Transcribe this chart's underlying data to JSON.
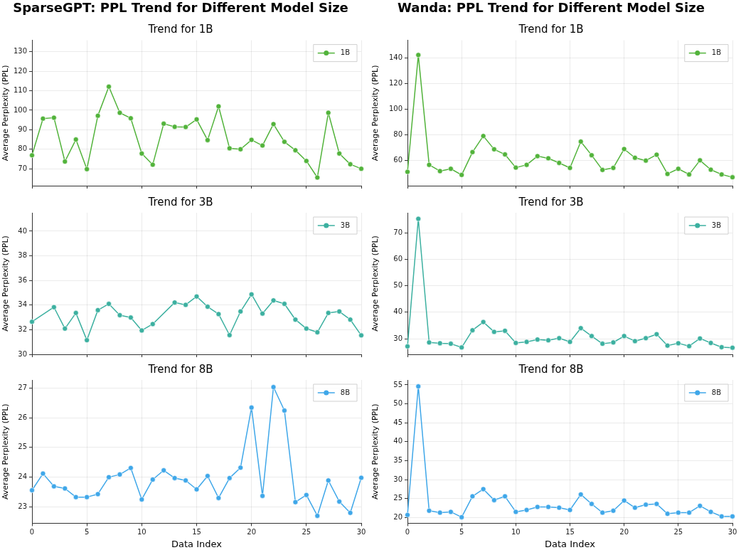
{
  "chart_data": [
    {
      "type": "line",
      "title": "SparseGPT: PPL Trend for Different Model Size",
      "subtitle": "Trend for 1B",
      "ylabel": "Average Perplexity (PPL)",
      "x": [
        0,
        1,
        2,
        3,
        4,
        5,
        6,
        7,
        8,
        9,
        10,
        11,
        12,
        13,
        14,
        15,
        16,
        17,
        18,
        19,
        20,
        21,
        22,
        23,
        24,
        25,
        26,
        27,
        28,
        29,
        30
      ],
      "series": [
        {
          "name": "1B",
          "color": "#52b33b",
          "values": [
            76.9,
            95.7,
            96.2,
            73.7,
            85.0,
            69.8,
            97.2,
            112.1,
            98.7,
            95.9,
            77.8,
            72.1,
            93.1,
            91.5,
            91.4,
            95.3,
            84.7,
            102.0,
            80.5,
            80.0,
            84.8,
            81.9,
            92.9,
            83.8,
            79.5,
            74.0,
            65.5,
            98.7,
            77.8,
            72.3,
            70.0
          ]
        }
      ],
      "xlim": [
        0,
        30
      ],
      "xticks": [
        0,
        5,
        10,
        15,
        20,
        25,
        30
      ],
      "ylim": [
        61.3,
        135.9
      ],
      "yticks": [
        70,
        80,
        90,
        100,
        110,
        120,
        130
      ],
      "tick_labels": "y",
      "grid": true,
      "legend": "top right",
      "marker": "circle"
    },
    {
      "type": "line",
      "title": "Trend for 3B",
      "ylabel": "Average Perplexity (PPL)",
      "x": [
        0,
        1,
        2,
        3,
        4,
        5,
        6,
        7,
        8,
        9,
        10,
        11,
        12,
        13,
        14,
        15,
        16,
        17,
        18,
        19,
        20,
        21,
        22,
        23,
        24,
        25,
        26,
        27,
        28,
        29,
        30
      ],
      "series": [
        {
          "name": "3B",
          "color": "#3cb0a0",
          "values": [
            32.65,
            null,
            33.83,
            32.09,
            33.36,
            31.15,
            33.59,
            34.1,
            33.18,
            32.99,
            31.94,
            32.46,
            null,
            34.21,
            34.02,
            34.7,
            33.87,
            33.27,
            31.56,
            33.48,
            34.87,
            33.31,
            34.38,
            34.1,
            32.82,
            32.09,
            31.79,
            33.36,
            33.48,
            32.82,
            31.54
          ]
        }
      ],
      "xlim": [
        0,
        30
      ],
      "xticks": [
        0,
        5,
        10,
        15,
        20,
        25,
        30
      ],
      "ylim": [
        30,
        41.5
      ],
      "yticks": [
        30,
        32,
        34,
        36,
        38,
        40
      ],
      "tick_labels": "y",
      "grid": true,
      "legend": "top right",
      "marker": "circle"
    },
    {
      "type": "line",
      "title": "Trend for 8B",
      "xlabel": "Data Index",
      "ylabel": "Average Perplexity (PPL)",
      "x": [
        0,
        1,
        2,
        3,
        4,
        5,
        6,
        7,
        8,
        9,
        10,
        11,
        12,
        13,
        14,
        15,
        16,
        17,
        18,
        19,
        20,
        21,
        22,
        23,
        24,
        25,
        26,
        27,
        28,
        29,
        30
      ],
      "series": [
        {
          "name": "8B",
          "color": "#3fa7e9",
          "values": [
            23.56,
            24.12,
            23.69,
            23.62,
            23.33,
            23.33,
            23.43,
            24.0,
            24.09,
            24.31,
            23.25,
            23.92,
            24.23,
            23.97,
            23.89,
            23.59,
            24.04,
            23.3,
            23.97,
            24.32,
            26.34,
            23.37,
            27.03,
            26.24,
            23.16,
            23.4,
            22.7,
            23.89,
            23.18,
            22.8,
            23.98
          ]
        }
      ],
      "xlim": [
        0,
        30
      ],
      "xticks": [
        0,
        5,
        10,
        15,
        20,
        25,
        30
      ],
      "ylim": [
        22.45,
        27.27
      ],
      "yticks": [
        23,
        24,
        25,
        26,
        27
      ],
      "grid": true,
      "legend": "top right",
      "marker": "circle"
    },
    {
      "type": "line",
      "title": "Wanda: PPL Trend for Different Model Size",
      "subtitle": "Trend for 1B",
      "ylabel": "Average Perplexity (PPL)",
      "x": [
        0,
        1,
        2,
        3,
        4,
        5,
        6,
        7,
        8,
        9,
        10,
        11,
        12,
        13,
        14,
        15,
        16,
        17,
        18,
        19,
        20,
        21,
        22,
        23,
        24,
        25,
        26,
        27,
        28,
        29,
        30
      ],
      "series": [
        {
          "name": "1B",
          "color": "#52b33b",
          "values": [
            51.2,
            142.4,
            56.7,
            51.8,
            53.6,
            48.8,
            66.6,
            79.2,
            68.8,
            64.8,
            54.5,
            56.7,
            63.5,
            61.8,
            58.2,
            54.3,
            74.8,
            64.2,
            52.7,
            54.3,
            69.0,
            62.2,
            60.0,
            64.6,
            49.6,
            53.6,
            49.2,
            60.2,
            52.9,
            49.2,
            47.0
          ]
        }
      ],
      "xlim": [
        0,
        30
      ],
      "xticks": [
        0,
        5,
        10,
        15,
        20,
        25,
        30
      ],
      "ylim": [
        40.4,
        153.9
      ],
      "yticks": [
        60,
        80,
        100,
        120,
        140
      ],
      "tick_labels": "y",
      "grid": true,
      "legend": "top right",
      "marker": "circle"
    },
    {
      "type": "line",
      "title": "Trend for 3B",
      "ylabel": "Average Perplexity (PPL)",
      "x": [
        0,
        1,
        2,
        3,
        4,
        5,
        6,
        7,
        8,
        9,
        10,
        11,
        12,
        13,
        14,
        15,
        16,
        17,
        18,
        19,
        20,
        21,
        22,
        23,
        24,
        25,
        26,
        27,
        28,
        29,
        30
      ],
      "series": [
        {
          "name": "3B",
          "color": "#3cb0a0",
          "values": [
            27.1,
            75.3,
            28.6,
            28.3,
            28.1,
            26.7,
            33.2,
            36.3,
            32.6,
            33.0,
            28.4,
            28.8,
            29.7,
            29.4,
            30.2,
            28.8,
            34.0,
            31.0,
            28.1,
            28.6,
            31.0,
            29.1,
            30.2,
            31.7,
            27.4,
            28.3,
            27.2,
            30.1,
            28.4,
            26.8,
            26.6
          ]
        }
      ],
      "xlim": [
        0,
        30
      ],
      "xticks": [
        0,
        5,
        10,
        15,
        20,
        25,
        30
      ],
      "ylim": [
        24.1,
        77.6
      ],
      "yticks": [
        30,
        40,
        50,
        60,
        70
      ],
      "tick_labels": "y",
      "grid": true,
      "legend": "top right",
      "marker": "circle"
    },
    {
      "type": "line",
      "title": "Trend for 8B",
      "xlabel": "Data Index",
      "ylabel": "Average Perplexity (PPL)",
      "x": [
        0,
        1,
        2,
        3,
        4,
        5,
        6,
        7,
        8,
        9,
        10,
        11,
        12,
        13,
        14,
        15,
        16,
        17,
        18,
        19,
        20,
        21,
        22,
        23,
        24,
        25,
        26,
        27,
        28,
        29,
        30
      ],
      "series": [
        {
          "name": "8B",
          "color": "#3fa7e9",
          "values": [
            20.7,
            54.6,
            21.8,
            21.3,
            21.5,
            20.1,
            25.6,
            27.5,
            24.6,
            25.6,
            21.5,
            22.0,
            22.8,
            22.8,
            22.6,
            22.0,
            26.1,
            23.6,
            21.3,
            21.8,
            24.5,
            22.6,
            23.4,
            23.6,
            21.0,
            21.3,
            21.3,
            23.1,
            21.5,
            20.3,
            20.3
          ]
        }
      ],
      "xlim": [
        0,
        30
      ],
      "xticks": [
        0,
        5,
        10,
        15,
        20,
        25,
        30
      ],
      "ylim": [
        18.5,
        56.3
      ],
      "yticks": [
        20,
        25,
        30,
        35,
        40,
        45,
        50,
        55
      ],
      "grid": true,
      "legend": "top right",
      "marker": "circle"
    }
  ]
}
